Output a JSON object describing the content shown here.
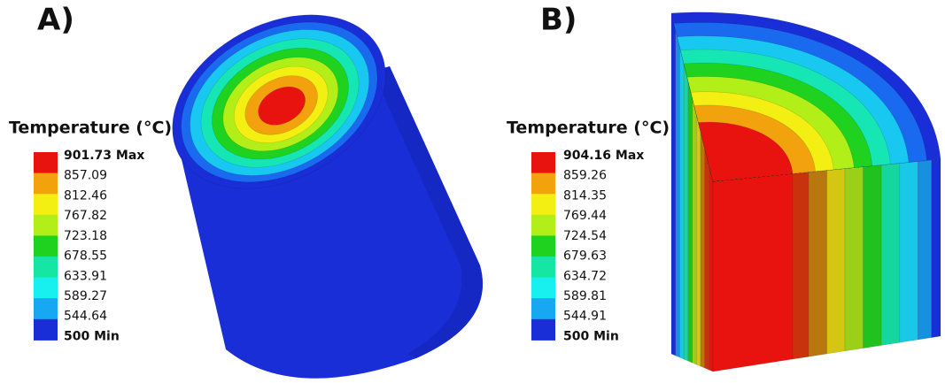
{
  "panels": [
    {
      "label": "A)",
      "legend": {
        "title": "Temperature (°C)",
        "entries": [
          "901.73 Max",
          "857.09",
          "812.46",
          "767.82",
          "723.18",
          "678.55",
          "633.91",
          "589.27",
          "544.64",
          "500 Min"
        ]
      }
    },
    {
      "label": "B)",
      "legend": {
        "title": "Temperature (°C)",
        "entries": [
          "904.16 Max",
          "859.26",
          "814.35",
          "769.44",
          "724.54",
          "679.63",
          "634.72",
          "589.81",
          "544.91",
          "500 Min"
        ]
      }
    }
  ]
}
